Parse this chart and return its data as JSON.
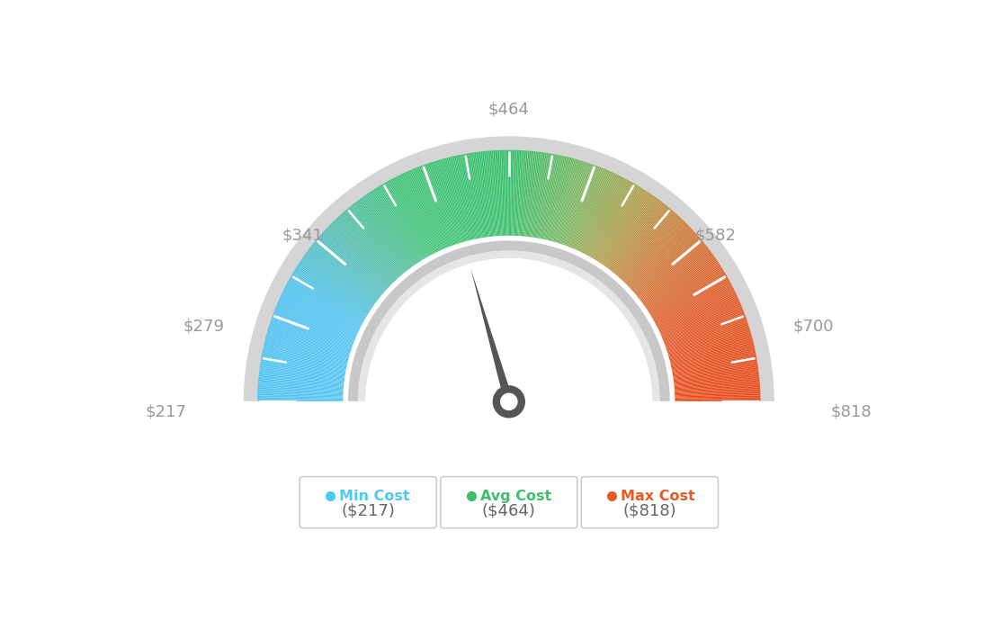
{
  "min_val": 217,
  "max_val": 818,
  "avg_val": 464,
  "label_values": [
    217,
    279,
    341,
    464,
    582,
    700,
    818
  ],
  "color_stops": [
    [
      0.0,
      "#55C4F0"
    ],
    [
      0.15,
      "#55C4F0"
    ],
    [
      0.25,
      "#5BBFB0"
    ],
    [
      0.35,
      "#45C47A"
    ],
    [
      0.5,
      "#3DC070"
    ],
    [
      0.6,
      "#7DB865"
    ],
    [
      0.68,
      "#B0A050"
    ],
    [
      0.75,
      "#CC8040"
    ],
    [
      0.85,
      "#E06030"
    ],
    [
      1.0,
      "#E84E20"
    ]
  ],
  "min_cost_color": "#4DC8F0",
  "avg_cost_color": "#3DBE6A",
  "max_cost_color": "#E85A20",
  "needle_color": "#555555",
  "background_color": "#FFFFFF",
  "tick_color": "#FFFFFF",
  "label_color": "#999999",
  "outer_ring_color": "#D5D5D5",
  "inner_ring_outer_color": "#D8D8D8",
  "inner_ring_inner_color": "#EEEEEE"
}
